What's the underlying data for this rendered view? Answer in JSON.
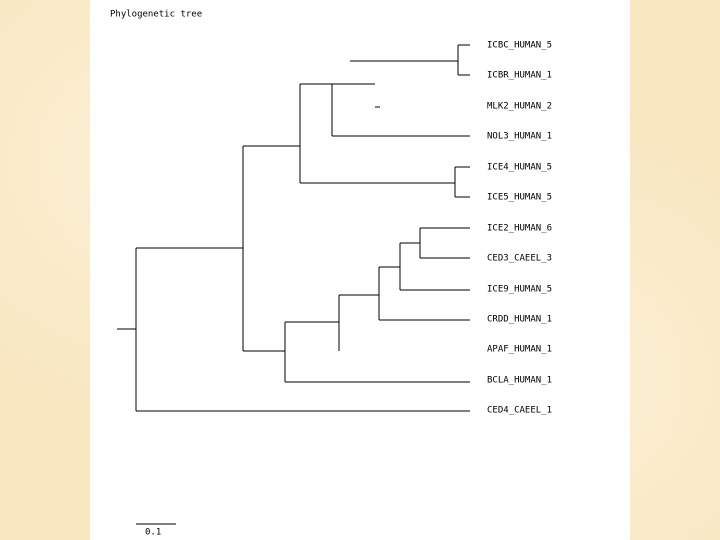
{
  "title": "Phylogenetic tree",
  "leaves": [
    "ICBC_HUMAN_5",
    "ICBR_HUMAN_1",
    "MLK2_HUMAN_2",
    "NOL3_HUMAN_1",
    "ICE4_HUMAN_5",
    "ICE5_HUMAN_5",
    "ICE2_HUMAN_6",
    "CED3_CAEEL_3",
    "ICE9_HUMAN_5",
    "CRDD_HUMAN_1",
    "APAF_HUMAN_1",
    "BCLA_HUMAN_1",
    "CED4_CAEEL_1"
  ],
  "scale_label": "0.1"
}
